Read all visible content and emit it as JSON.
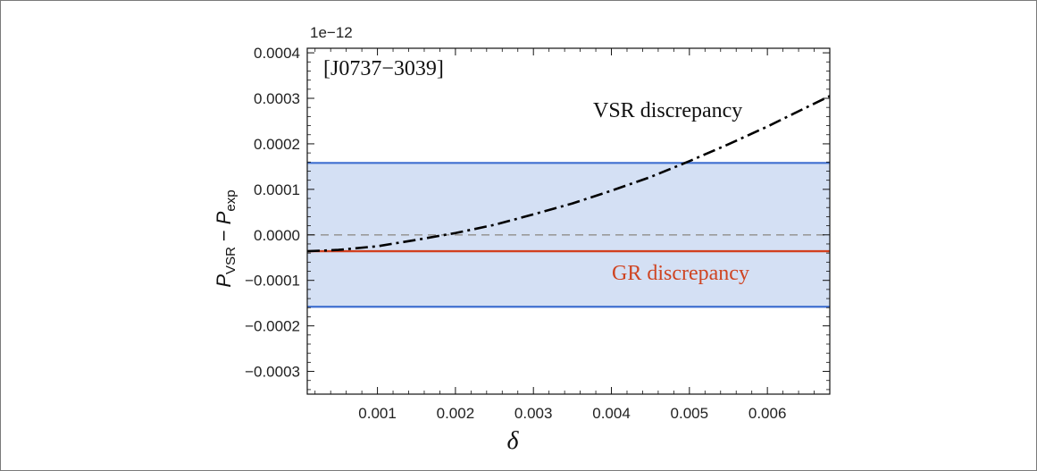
{
  "chart_data": {
    "type": "line",
    "panel_label": "[J0737−3039]",
    "xlabel": "δ",
    "ylabel": {
      "p_glyph": "P",
      "sub_vsr": "VSR",
      "minus": "−",
      "sub_exp": "exp"
    },
    "y_multiplier": "1e−12",
    "xlim": [
      0.0001,
      0.0068
    ],
    "ylim": [
      -0.00035,
      0.00041
    ],
    "x_ticks": [
      0.001,
      0.002,
      0.003,
      0.004,
      0.005,
      0.006
    ],
    "x_tick_labels": [
      "0.001",
      "0.002",
      "0.003",
      "0.004",
      "0.005",
      "0.006"
    ],
    "y_ticks": [
      -0.0003,
      -0.0002,
      -0.0001,
      0.0,
      0.0001,
      0.0002,
      0.0003,
      0.0004
    ],
    "y_tick_labels": [
      "−0.0003",
      "−0.0002",
      "−0.0001",
      "0.0000",
      "0.0001",
      "0.0002",
      "0.0003",
      "0.0004"
    ],
    "band": {
      "lower": -0.000158,
      "upper": 0.000158,
      "fill": "#d4e0f4",
      "edge": "#3f6fd0"
    },
    "zero_line": {
      "y": 0.0,
      "color": "#9a9a9a"
    },
    "series": [
      {
        "name": "VSR discrepancy",
        "label_color": "#111111",
        "color": "#000000",
        "style": "dash-dot",
        "x": [
          0.0001,
          0.0005,
          0.001,
          0.0015,
          0.002,
          0.0025,
          0.003,
          0.0035,
          0.004,
          0.0045,
          0.005,
          0.0055,
          0.006,
          0.0065,
          0.0068
        ],
        "y": [
          -3.6e-05,
          -3.3e-05,
          -2.5e-05,
          -1.1e-05,
          4e-06,
          2.2e-05,
          4.5e-05,
          6.9e-05,
          9.7e-05,
          0.000127,
          0.000162,
          0.000199,
          0.000238,
          0.00028,
          0.000305
        ]
      },
      {
        "name": "GR discrepancy",
        "label_color": "#cf4422",
        "color": "#d2401f",
        "style": "solid",
        "x": [
          0.0001,
          0.0068
        ],
        "y": [
          -3.6e-05,
          -3.6e-05
        ]
      }
    ]
  }
}
